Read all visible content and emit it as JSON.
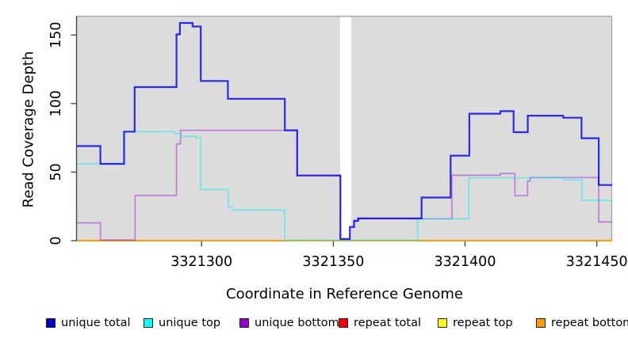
{
  "figure": {
    "background": "#ffffff",
    "panel_background": "#dcdcdc",
    "panel_border_color": "#a9a9a9",
    "axis_color": "#404040",
    "text_color": "#000000"
  },
  "legend": [
    {
      "label": "unique total",
      "color": "#0000cc"
    },
    {
      "label": "unique top",
      "color": "#00ffff"
    },
    {
      "label": "unique bottom",
      "color": "#9400d3"
    },
    {
      "label": "repeat total",
      "color": "#ee0000"
    },
    {
      "label": "repeat top",
      "color": "#ffff00"
    },
    {
      "label": "repeat bottom",
      "color": "#ff9905"
    }
  ],
  "chart_data": {
    "type": "line",
    "style": "step-after",
    "title": "",
    "xlabel": "Coordinate in Reference Genome",
    "ylabel": "Read Coverage Depth",
    "xlim": [
      3321252.7,
      3321455.8
    ],
    "ylim": [
      0,
      164
    ],
    "grid": false,
    "legend_position": "bottom",
    "xticks": [
      {
        "value": 3321300,
        "label": "3321300"
      },
      {
        "value": 3321350,
        "label": "3321350"
      },
      {
        "value": 3321400,
        "label": "3321400"
      },
      {
        "value": 3321450,
        "label": "3321450"
      }
    ],
    "yticks": [
      {
        "value": 0,
        "label": "0"
      },
      {
        "value": 50,
        "label": "50"
      },
      {
        "value": 100,
        "label": "100"
      },
      {
        "value": 150,
        "label": "150"
      }
    ],
    "no_data_gap": {
      "x0": 3321352.6,
      "x1": 3321356.8,
      "color": "#ffffff"
    },
    "series": [
      {
        "name": "repeat total",
        "key": "repeat-total",
        "color": "rgba(220,0,0,0.8)",
        "width": 1.6,
        "points": [
          [
            3321252.7,
            0
          ]
        ]
      },
      {
        "name": "repeat top",
        "key": "repeat-top",
        "color": "rgba(255,255,0,0.8)",
        "width": 1.6,
        "points": [
          [
            3321252.7,
            0
          ]
        ]
      },
      {
        "name": "repeat bottom",
        "key": "repeat-bottom",
        "color": "#ff9e05",
        "width": 2,
        "points": [
          [
            3321252.7,
            0
          ]
        ]
      },
      {
        "name": "unique bottom",
        "key": "unique-bottom",
        "color": "rgba(150,10,215,0.45)",
        "width": 1.7,
        "points": [
          [
            3321252.7,
            13
          ],
          [
            3321261.6,
            0.5
          ],
          [
            3321274.8,
            33
          ],
          [
            3321290.5,
            70.5
          ],
          [
            3321292.0,
            80.5
          ],
          [
            3321336.3,
            47.5
          ],
          [
            3321352.7,
            1.0
          ],
          [
            3321356.3,
            9.7
          ],
          [
            3321357.9,
            14.2
          ],
          [
            3321359.4,
            16.0
          ],
          [
            3321395.0,
            47.7
          ],
          [
            3321413.4,
            49.0
          ],
          [
            3321418.9,
            32.8
          ],
          [
            3321423.7,
            43.5
          ],
          [
            3321424.7,
            46.0
          ],
          [
            3321450.7,
            13.6
          ]
        ]
      },
      {
        "name": "unique top",
        "key": "unique-top",
        "color": "rgba(0,240,240,0.5)",
        "width": 1.7,
        "points": [
          [
            3321252.7,
            56
          ],
          [
            3321270.6,
            79.5
          ],
          [
            3321289.7,
            78
          ],
          [
            3321292.2,
            76
          ],
          [
            3321298.0,
            74.9
          ],
          [
            3321299.7,
            37.3
          ],
          [
            3321310.1,
            24.5
          ],
          [
            3321311.6,
            22.3
          ],
          [
            3321331.6,
            0.3
          ],
          [
            3321382.0,
            16
          ],
          [
            3321401.4,
            45.8
          ],
          [
            3321437.5,
            44.4
          ],
          [
            3321444.4,
            29.4
          ]
        ]
      },
      {
        "name": "unique total",
        "key": "unique-total",
        "color": "rgba(10,10,235,0.85)",
        "width": 2.2,
        "points": [
          [
            3321252.7,
            69
          ],
          [
            3321261.6,
            56
          ],
          [
            3321270.6,
            79.5
          ],
          [
            3321274.6,
            112
          ],
          [
            3321290.5,
            150.5
          ],
          [
            3321291.8,
            158.8
          ],
          [
            3321296.6,
            156.2
          ],
          [
            3321299.7,
            116.5
          ],
          [
            3321310.0,
            103.5
          ],
          [
            3321331.6,
            80.5
          ],
          [
            3321336.3,
            47.5
          ],
          [
            3321352.7,
            1.2
          ],
          [
            3321356.3,
            10
          ],
          [
            3321357.9,
            14.5
          ],
          [
            3321359.4,
            16.2
          ],
          [
            3321383.5,
            31.5
          ],
          [
            3321394.5,
            62
          ],
          [
            3321401.6,
            92.6
          ],
          [
            3321413.4,
            94.5
          ],
          [
            3321418.4,
            79.1
          ],
          [
            3321423.8,
            91.2
          ],
          [
            3321437.2,
            89.7
          ],
          [
            3321444.2,
            74.7
          ],
          [
            3321450.7,
            40.6
          ]
        ]
      }
    ]
  }
}
